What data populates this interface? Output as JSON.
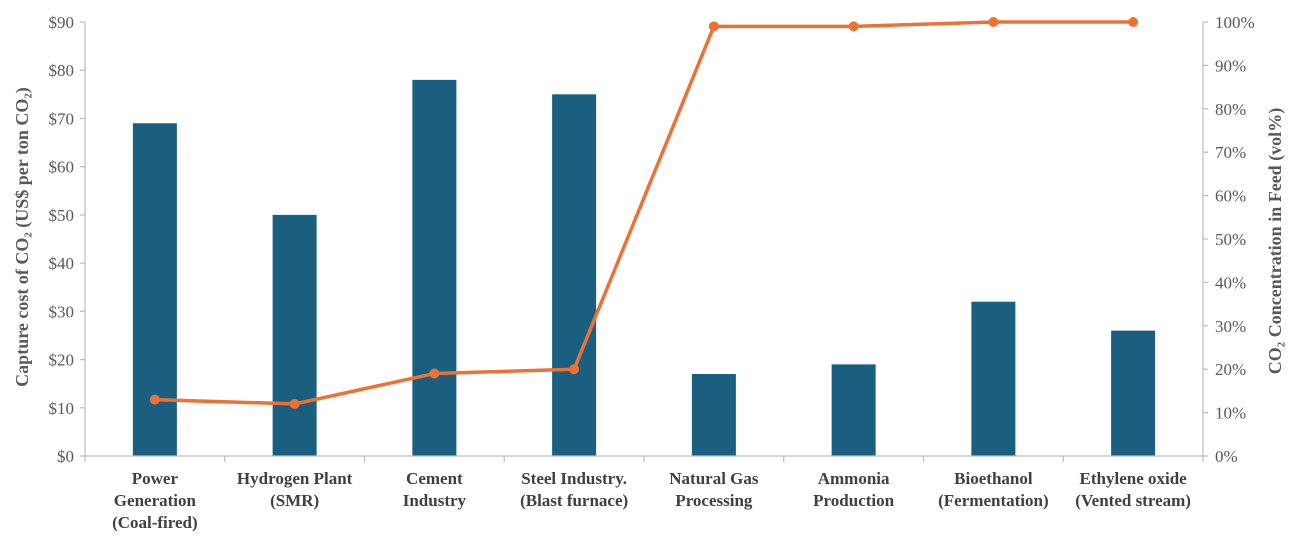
{
  "chart_data": {
    "type": "bar",
    "categories": [
      [
        "Power",
        "Generation",
        "(Coal-fired)"
      ],
      [
        "Hydrogen Plant",
        "(SMR)"
      ],
      [
        "Cement",
        "Industry"
      ],
      [
        "Steel Industry.",
        "(Blast furnace)"
      ],
      [
        "Natural Gas",
        "Processing"
      ],
      [
        "Ammonia",
        "Production"
      ],
      [
        "Bioethanol",
        "(Fermentation)"
      ],
      [
        "Ethylene oxide",
        "(Vented stream)"
      ]
    ],
    "series": [
      {
        "type": "bar",
        "axis": "left",
        "color": "#1a5f80",
        "values": [
          69,
          50,
          78,
          75,
          17,
          19,
          32,
          26
        ]
      },
      {
        "type": "line",
        "axis": "right",
        "color": "#ed7134",
        "values": [
          13,
          12,
          19,
          20,
          99,
          99,
          100,
          100
        ]
      }
    ],
    "ylabel": "Capture cost of CO₂  (US$ per ton CO₂)",
    "y2label": "CO₂ Concentration  in Feed (vol%)",
    "ylim": [
      0,
      90
    ],
    "y2lim": [
      0,
      100
    ],
    "yticks": [
      "$0",
      "$10",
      "$20",
      "$30",
      "$40",
      "$50",
      "$60",
      "$70",
      "$80",
      "$90"
    ],
    "y2ticks": [
      "0%",
      "10%",
      "20%",
      "30%",
      "40%",
      "50%",
      "60%",
      "70%",
      "80%",
      "90%",
      "100%"
    ],
    "grid": false,
    "legend": "none"
  }
}
